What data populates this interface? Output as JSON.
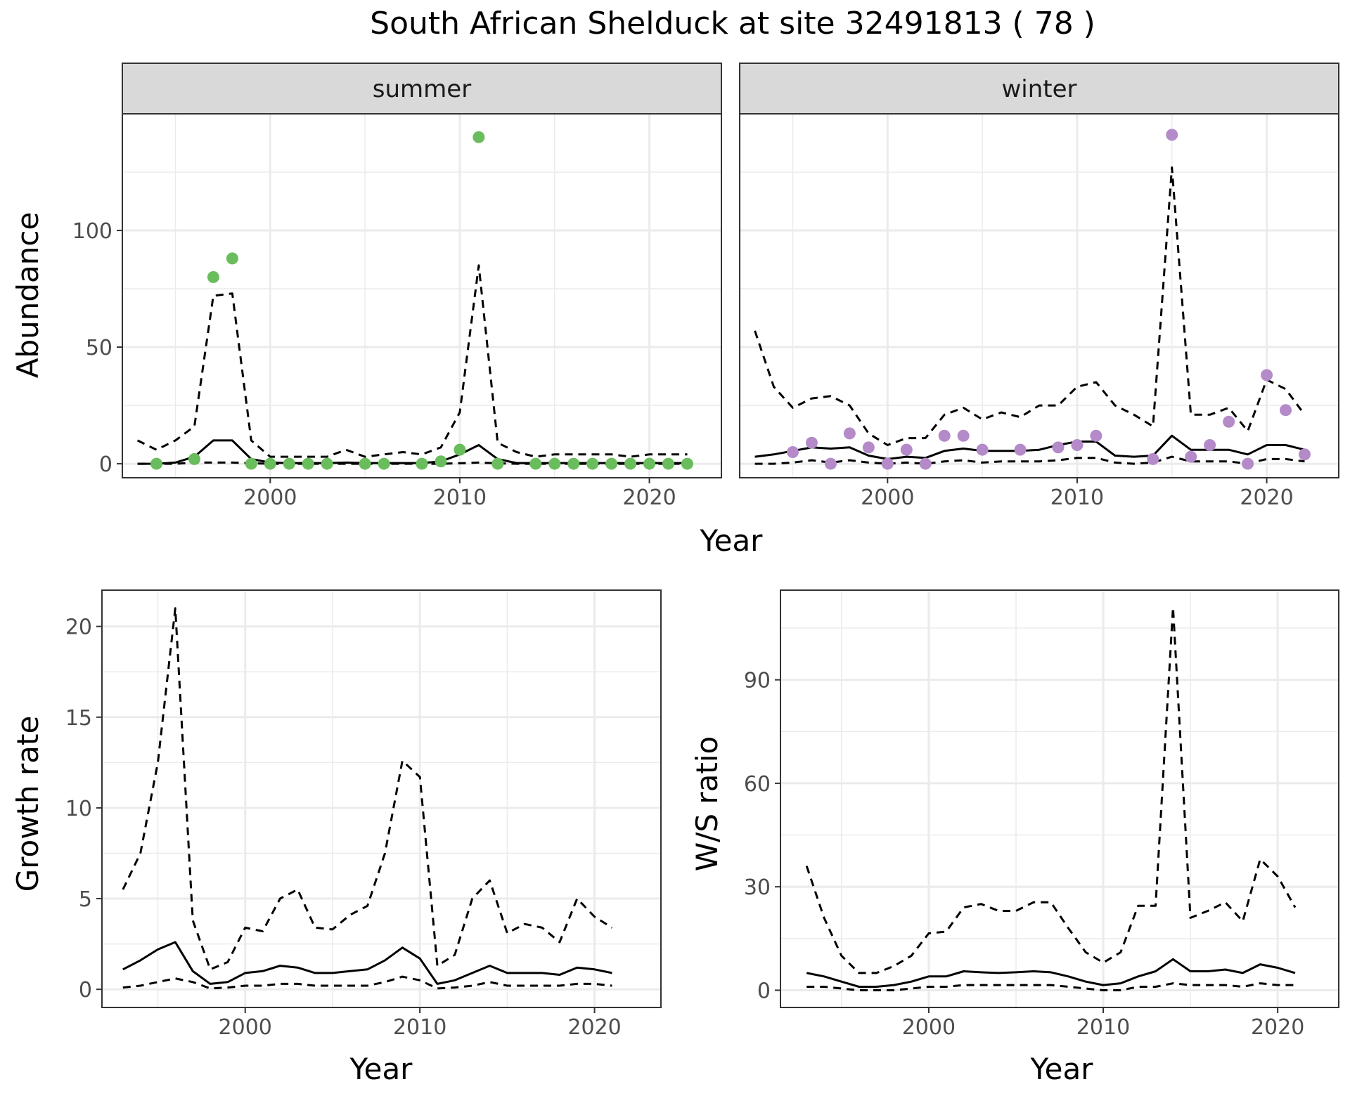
{
  "title": "South African Shelduck at site 32491813 ( 78 )",
  "colors": {
    "summer_points": "#6ABD5C",
    "winter_points": "#B48AC9",
    "line": "#000000",
    "grid": "#EBEBEB",
    "strip_fill": "#D9D9D9"
  },
  "chart_data": [
    {
      "type": "line",
      "panel": "summer",
      "strip_label": "summer",
      "xlabel": "Year",
      "ylabel": "Abundance",
      "xlim": [
        1992.2,
        2023.8
      ],
      "ylim": [
        -6,
        150
      ],
      "xticks": [
        2000,
        2010,
        2020
      ],
      "yticks": [
        0,
        50,
        100
      ],
      "grid": true,
      "point_color": "#6ABD5C",
      "points": {
        "x": [
          1994,
          1996,
          1997,
          1998,
          1999,
          2000,
          2001,
          2002,
          2003,
          2005,
          2006,
          2008,
          2009,
          2010,
          2011,
          2012,
          2014,
          2015,
          2016,
          2017,
          2018,
          2019,
          2020,
          2021,
          2022
        ],
        "y": [
          0,
          2,
          80,
          88,
          0,
          0,
          0,
          0,
          0,
          0,
          0,
          0,
          1,
          6,
          140,
          0,
          0,
          0,
          0,
          0,
          0,
          0,
          0,
          0,
          0
        ]
      },
      "series": [
        {
          "role": "estimate",
          "dashed": false,
          "x": [
            1993,
            1994,
            1995,
            1996,
            1997,
            1998,
            1999,
            2000,
            2001,
            2002,
            2003,
            2004,
            2005,
            2006,
            2007,
            2008,
            2009,
            2010,
            2011,
            2012,
            2013,
            2014,
            2015,
            2016,
            2017,
            2018,
            2019,
            2020,
            2021,
            2022
          ],
          "values": [
            0,
            0,
            0.5,
            3,
            10,
            10,
            2,
            0.5,
            0.3,
            0.3,
            0.3,
            0.5,
            0.3,
            0.3,
            0.3,
            0.3,
            1,
            4,
            8,
            2,
            0.3,
            0.3,
            0.3,
            0.3,
            0.3,
            0.3,
            0.3,
            0.3,
            0.3,
            0.3
          ]
        },
        {
          "role": "upper",
          "dashed": true,
          "x": [
            1993,
            1994,
            1995,
            1996,
            1997,
            1998,
            1999,
            2000,
            2001,
            2002,
            2003,
            2004,
            2005,
            2006,
            2007,
            2008,
            2009,
            2010,
            2011,
            2012,
            2013,
            2014,
            2015,
            2016,
            2017,
            2018,
            2019,
            2020,
            2021,
            2022
          ],
          "values": [
            10,
            6,
            10,
            16,
            72,
            73,
            10,
            3,
            3,
            3,
            3,
            6,
            3,
            4,
            5,
            4,
            7,
            22,
            85,
            9,
            5,
            3,
            4,
            4,
            4,
            4,
            3,
            4,
            4,
            4
          ]
        },
        {
          "role": "lower",
          "dashed": true,
          "x": [
            1993,
            1994,
            1995,
            1996,
            1997,
            1998,
            1999,
            2000,
            2001,
            2002,
            2003,
            2004,
            2005,
            2006,
            2007,
            2008,
            2009,
            2010,
            2011,
            2012,
            2013,
            2014,
            2015,
            2016,
            2017,
            2018,
            2019,
            2020,
            2021,
            2022
          ],
          "values": [
            0,
            0,
            0,
            0.5,
            0.5,
            0.5,
            0.2,
            0,
            0,
            0,
            0,
            0,
            0,
            0,
            0,
            0,
            0,
            0.2,
            0.5,
            0.2,
            0,
            0,
            0,
            0,
            0,
            0,
            0,
            0,
            0,
            0
          ]
        }
      ]
    },
    {
      "type": "line",
      "panel": "winter",
      "strip_label": "winter",
      "xlabel": "Year",
      "ylabel": "Abundance",
      "xlim": [
        1992.2,
        2023.8
      ],
      "ylim": [
        -6,
        150
      ],
      "xticks": [
        2000,
        2010,
        2020
      ],
      "yticks": [
        0,
        50,
        100
      ],
      "grid": true,
      "point_color": "#B48AC9",
      "points": {
        "x": [
          1995,
          1996,
          1997,
          1998,
          1999,
          2000,
          2001,
          2002,
          2003,
          2004,
          2005,
          2007,
          2009,
          2010,
          2011,
          2014,
          2015,
          2016,
          2017,
          2018,
          2019,
          2020,
          2021,
          2022
        ],
        "y": [
          5,
          9,
          0,
          13,
          7,
          0,
          6,
          0,
          12,
          12,
          6,
          6,
          7,
          8,
          12,
          2,
          141,
          3,
          8,
          18,
          0,
          38,
          23,
          4
        ]
      },
      "series": [
        {
          "role": "estimate",
          "dashed": false,
          "x": [
            1993,
            1994,
            1995,
            1996,
            1997,
            1998,
            1999,
            2000,
            2001,
            2002,
            2003,
            2004,
            2005,
            2006,
            2007,
            2008,
            2009,
            2010,
            2011,
            2012,
            2013,
            2014,
            2015,
            2016,
            2017,
            2018,
            2019,
            2020,
            2021,
            2022
          ],
          "values": [
            3,
            4,
            5.5,
            7,
            6.5,
            7,
            3.5,
            2,
            3,
            2.5,
            5.5,
            6.5,
            5.5,
            5.5,
            5.5,
            6,
            8,
            9.5,
            9.5,
            3.5,
            3,
            3.5,
            12,
            6,
            6,
            6,
            4,
            8,
            8,
            6
          ]
        },
        {
          "role": "upper",
          "dashed": true,
          "x": [
            1993,
            1994,
            1995,
            1996,
            1997,
            1998,
            1999,
            2000,
            2001,
            2002,
            2003,
            2004,
            2005,
            2006,
            2007,
            2008,
            2009,
            2010,
            2011,
            2012,
            2013,
            2014,
            2015,
            2016,
            2017,
            2018,
            2019,
            2020,
            2021,
            2022
          ],
          "values": [
            57,
            33,
            24,
            28,
            29,
            25,
            13,
            8,
            11,
            11,
            21,
            24,
            19,
            22,
            20,
            25,
            25,
            33,
            35,
            25,
            21,
            16,
            127,
            21,
            21,
            24,
            14,
            36,
            32,
            21
          ]
        },
        {
          "role": "lower",
          "dashed": true,
          "x": [
            1993,
            1994,
            1995,
            1996,
            1997,
            1998,
            1999,
            2000,
            2001,
            2002,
            2003,
            2004,
            2005,
            2006,
            2007,
            2008,
            2009,
            2010,
            2011,
            2012,
            2013,
            2014,
            2015,
            2016,
            2017,
            2018,
            2019,
            2020,
            2021,
            2022
          ],
          "values": [
            0,
            0,
            0.5,
            1.5,
            0.5,
            1.5,
            0.5,
            0,
            0.5,
            0,
            1,
            1.5,
            0.5,
            1,
            1,
            1,
            1.5,
            2.5,
            2.5,
            0.5,
            0,
            0.5,
            3,
            1,
            1,
            1,
            0,
            2,
            2,
            1
          ]
        }
      ]
    },
    {
      "type": "line",
      "panel": "growth",
      "xlabel": "Year",
      "ylabel": "Growth rate",
      "xlim": [
        1991.8,
        2023.8
      ],
      "ylim": [
        -1,
        22
      ],
      "xticks": [
        2000,
        2010,
        2020
      ],
      "yticks": [
        0,
        5,
        10,
        15,
        20
      ],
      "grid": true,
      "series": [
        {
          "role": "estimate",
          "dashed": false,
          "x": [
            1993,
            1994,
            1995,
            1996,
            1997,
            1998,
            1999,
            2000,
            2001,
            2002,
            2003,
            2004,
            2005,
            2006,
            2007,
            2008,
            2009,
            2010,
            2011,
            2012,
            2013,
            2014,
            2015,
            2016,
            2017,
            2018,
            2019,
            2020,
            2021
          ],
          "values": [
            1.1,
            1.6,
            2.2,
            2.6,
            1.0,
            0.3,
            0.4,
            0.9,
            1.0,
            1.3,
            1.2,
            0.9,
            0.9,
            1.0,
            1.1,
            1.6,
            2.3,
            1.7,
            0.3,
            0.5,
            0.9,
            1.3,
            0.9,
            0.9,
            0.9,
            0.8,
            1.2,
            1.1,
            0.9
          ]
        },
        {
          "role": "upper",
          "dashed": true,
          "x": [
            1993,
            1994,
            1995,
            1996,
            1997,
            1998,
            1999,
            2000,
            2001,
            2002,
            2003,
            2004,
            2005,
            2006,
            2007,
            2008,
            2009,
            2010,
            2011,
            2012,
            2013,
            2014,
            2015,
            2016,
            2017,
            2018,
            2019,
            2020,
            2021
          ],
          "values": [
            5.5,
            7.5,
            12.5,
            21,
            3.8,
            1.1,
            1.5,
            3.4,
            3.2,
            5.0,
            5.5,
            3.4,
            3.3,
            4.1,
            4.6,
            7.5,
            12.6,
            11.7,
            1.3,
            1.9,
            5.0,
            6.0,
            3.1,
            3.6,
            3.4,
            2.6,
            5.0,
            4.0,
            3.4
          ]
        },
        {
          "role": "lower",
          "dashed": true,
          "x": [
            1993,
            1994,
            1995,
            1996,
            1997,
            1998,
            1999,
            2000,
            2001,
            2002,
            2003,
            2004,
            2005,
            2006,
            2007,
            2008,
            2009,
            2010,
            2011,
            2012,
            2013,
            2014,
            2015,
            2016,
            2017,
            2018,
            2019,
            2020,
            2021
          ],
          "values": [
            0.1,
            0.2,
            0.4,
            0.6,
            0.4,
            0.05,
            0.1,
            0.2,
            0.2,
            0.3,
            0.3,
            0.2,
            0.2,
            0.2,
            0.2,
            0.4,
            0.7,
            0.5,
            0.05,
            0.1,
            0.2,
            0.4,
            0.2,
            0.2,
            0.2,
            0.2,
            0.3,
            0.3,
            0.2
          ]
        }
      ]
    },
    {
      "type": "line",
      "panel": "ws_ratio",
      "xlabel": "Year",
      "ylabel": "W/S ratio",
      "xlim": [
        1991.5,
        2023.5
      ],
      "ylim": [
        -5,
        116
      ],
      "xticks": [
        2000,
        2010,
        2020
      ],
      "yticks": [
        0,
        30,
        60,
        90
      ],
      "grid": true,
      "series": [
        {
          "role": "estimate",
          "dashed": false,
          "x": [
            1993,
            1994,
            1995,
            1996,
            1997,
            1998,
            1999,
            2000,
            2001,
            2002,
            2003,
            2004,
            2005,
            2006,
            2007,
            2008,
            2009,
            2010,
            2011,
            2012,
            2013,
            2014,
            2015,
            2016,
            2017,
            2018,
            2019,
            2020,
            2021
          ],
          "values": [
            5,
            4,
            2.5,
            1,
            1,
            1.5,
            2.5,
            4,
            4,
            5.5,
            5.2,
            5,
            5.2,
            5.5,
            5.2,
            4,
            2.5,
            1.5,
            2,
            4,
            5.5,
            9,
            5.5,
            5.5,
            6,
            5,
            7.5,
            6.5,
            5
          ]
        },
        {
          "role": "upper",
          "dashed": true,
          "x": [
            1993,
            1994,
            1995,
            1996,
            1997,
            1998,
            1999,
            2000,
            2001,
            2002,
            2003,
            2004,
            2005,
            2006,
            2007,
            2008,
            2009,
            2010,
            2011,
            2012,
            2013,
            2014,
            2015,
            2016,
            2017,
            2018,
            2019,
            2020,
            2021
          ],
          "values": [
            36,
            21,
            10,
            5,
            5,
            7,
            10,
            16.5,
            17,
            24,
            25,
            23,
            23,
            25.5,
            25.5,
            18,
            11,
            8,
            11,
            24.5,
            24.5,
            111,
            21,
            23,
            25.5,
            20,
            38,
            33,
            24
          ]
        },
        {
          "role": "lower",
          "dashed": true,
          "x": [
            1993,
            1994,
            1995,
            1996,
            1997,
            1998,
            1999,
            2000,
            2001,
            2002,
            2003,
            2004,
            2005,
            2006,
            2007,
            2008,
            2009,
            2010,
            2011,
            2012,
            2013,
            2014,
            2015,
            2016,
            2017,
            2018,
            2019,
            2020,
            2021
          ],
          "values": [
            1,
            1,
            0.5,
            0,
            0,
            0,
            0.5,
            1,
            1,
            1.5,
            1.5,
            1.5,
            1.5,
            1.5,
            1.5,
            1,
            0.5,
            0,
            0,
            1,
            1,
            2,
            1.5,
            1.5,
            1.5,
            1,
            2,
            1.5,
            1.5
          ]
        }
      ]
    }
  ]
}
